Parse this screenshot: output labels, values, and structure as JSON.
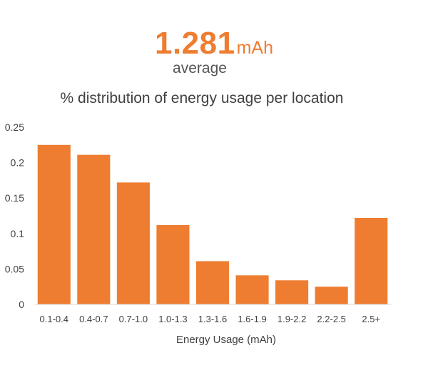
{
  "headline": {
    "value": "1.281",
    "unit": "mAh",
    "caption": "average"
  },
  "chart_data": {
    "type": "bar",
    "title": "% distribution of energy usage per location",
    "xlabel": "Energy Usage (mAh)",
    "ylabel": "",
    "categories": [
      "0.1-0.4",
      "0.4-0.7",
      "0.7-1.0",
      "1.0-1.3",
      "1.3-1.6",
      "1.6-1.9",
      "1.9-2.2",
      "2.2-2.5",
      "2.5+"
    ],
    "values": [
      0.225,
      0.211,
      0.172,
      0.112,
      0.061,
      0.041,
      0.034,
      0.025,
      0.122
    ],
    "ylim": [
      0,
      0.25
    ],
    "yticks": [
      0,
      0.05,
      0.1,
      0.15,
      0.2,
      0.25
    ],
    "ytick_labels": [
      "0",
      "0.05",
      "0.1",
      "0.15",
      "0.2",
      "0.25"
    ],
    "grid": false,
    "legend": "none",
    "bar_color": "#ee7d31"
  }
}
